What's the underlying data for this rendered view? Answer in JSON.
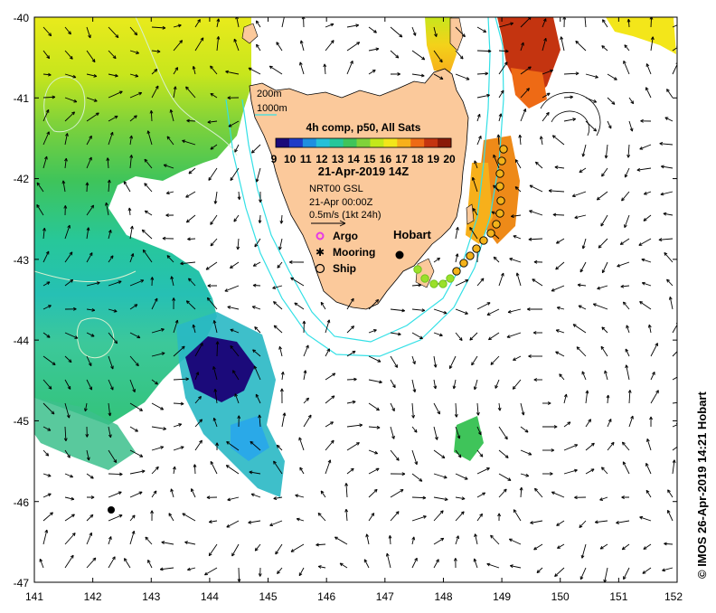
{
  "map": {
    "x_ticks": [
      "141",
      "142",
      "143",
      "144",
      "145",
      "146",
      "147",
      "148",
      "149",
      "150",
      "151",
      "152"
    ],
    "y_ticks": [
      "-40",
      "-41",
      "-42",
      "-43",
      "-44",
      "-45",
      "-46",
      "-47"
    ],
    "lon_range": [
      141,
      152
    ],
    "lat_range": [
      -47,
      -40
    ],
    "land_color": "#fbc99b",
    "isobath_color": "#33e0e6",
    "contour_color": "#c8e8c0"
  },
  "legend": {
    "isobaths": [
      "200m",
      "1000m"
    ],
    "title": "4h comp, p50, All Sats",
    "colorbar_ticks": [
      "9",
      "10",
      "11",
      "12",
      "13",
      "14",
      "15",
      "16",
      "17",
      "18",
      "19",
      "20"
    ],
    "colorbar_colors": [
      "#1b0a7a",
      "#1f3cc8",
      "#1f8fe0",
      "#26c0d8",
      "#27c79a",
      "#3fc45a",
      "#7fd23a",
      "#c4e81a",
      "#f3e61a",
      "#f7b01b",
      "#ee6a15",
      "#c43410",
      "#8a1a08"
    ],
    "date": "21-Apr-2019 14Z",
    "current_source": "NRT00 GSL",
    "current_time": "21-Apr 00:00Z",
    "scale_label": "0.5m/s (1kt 24h)",
    "markers": [
      {
        "symbol": "argo",
        "label": "Argo"
      },
      {
        "symbol": "mooring",
        "label": "Mooring"
      },
      {
        "symbol": "ship",
        "label": "Ship"
      }
    ]
  },
  "places": {
    "hobart": "Hobart"
  },
  "credit": "© IMOS 26-Apr-2019 14:21 Hobart"
}
